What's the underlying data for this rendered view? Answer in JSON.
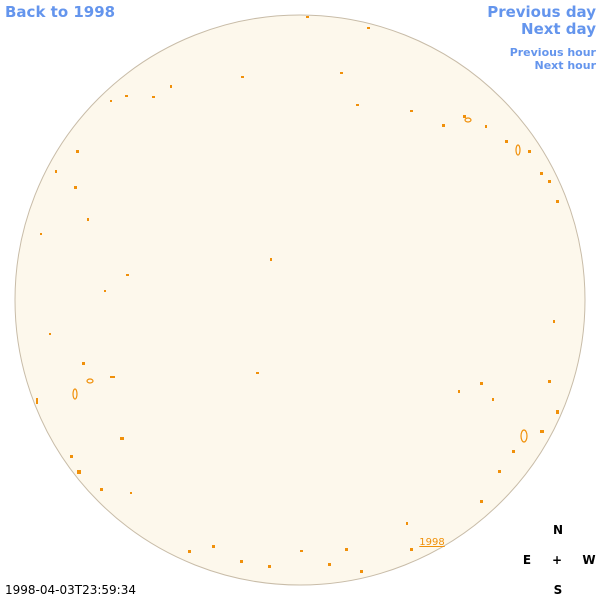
{
  "links": {
    "back": "Back to 1998",
    "previous_day": "Previous day",
    "next_day": "Next day",
    "previous_hour": "Previous hour",
    "next_hour": "Next hour"
  },
  "disk_label": "1998",
  "compass": {
    "north": "N",
    "east": "E",
    "center": "+",
    "west": "W",
    "south": "S"
  },
  "timestamp": "1998-04-03T23:59:34"
}
